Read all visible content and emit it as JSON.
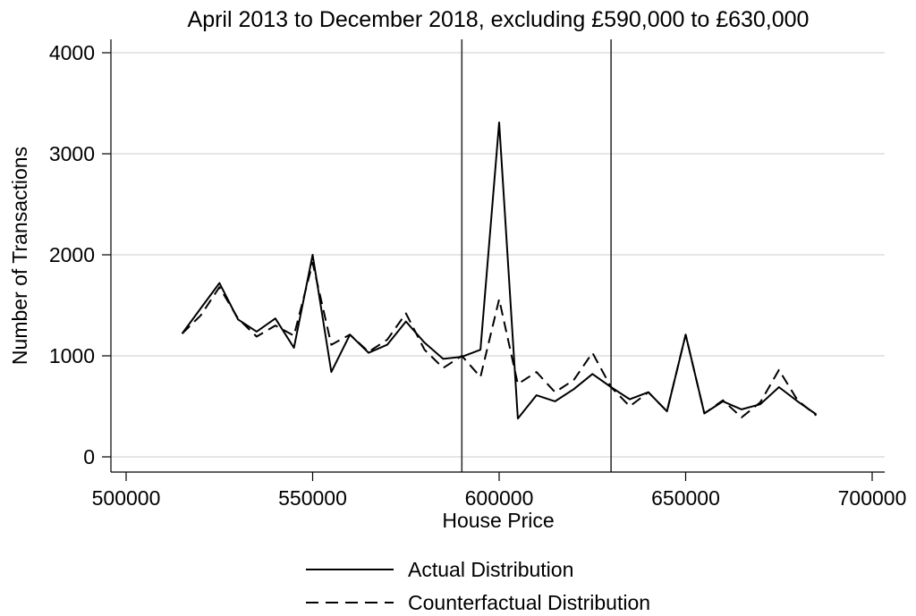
{
  "chart_data": {
    "type": "line",
    "title": "April 2013 to December 2018, excluding £590,000 to £630,000",
    "xlabel": "House Price",
    "ylabel": "Number of Transactions",
    "xlim": [
      500000,
      700000
    ],
    "ylim": [
      0,
      4000
    ],
    "x_ticks": [
      "500000",
      "550000",
      "600000",
      "650000",
      "700000"
    ],
    "y_ticks": [
      "0",
      "1000",
      "2000",
      "3000",
      "4000"
    ],
    "grid": true,
    "legend_position": "bottom",
    "reference_lines_x": [
      590000,
      630000
    ],
    "x": [
      515000,
      520000,
      525000,
      530000,
      535000,
      540000,
      545000,
      550000,
      555000,
      560000,
      565000,
      570000,
      575000,
      580000,
      585000,
      590000,
      595000,
      600000,
      605000,
      610000,
      615000,
      620000,
      625000,
      630000,
      635000,
      640000,
      645000,
      650000,
      655000,
      660000,
      665000,
      670000,
      675000,
      680000,
      685000
    ],
    "series": [
      {
        "name": "Actual Distribution",
        "style": "solid",
        "values": [
          1220,
          1470,
          1720,
          1360,
          1240,
          1370,
          1080,
          2000,
          840,
          1210,
          1030,
          1110,
          1340,
          1130,
          970,
          990,
          1060,
          3310,
          380,
          610,
          550,
          670,
          820,
          690,
          570,
          640,
          450,
          1210,
          430,
          550,
          470,
          520,
          690,
          550,
          420
        ]
      },
      {
        "name": "Counterfactual Distribution",
        "style": "dashed",
        "values": [
          1220,
          1400,
          1680,
          1370,
          1190,
          1300,
          1200,
          1920,
          1110,
          1210,
          1040,
          1160,
          1420,
          1060,
          880,
          1000,
          790,
          1560,
          720,
          840,
          640,
          760,
          1030,
          690,
          500,
          640,
          450,
          1210,
          430,
          560,
          390,
          540,
          860,
          560,
          410
        ]
      }
    ]
  }
}
